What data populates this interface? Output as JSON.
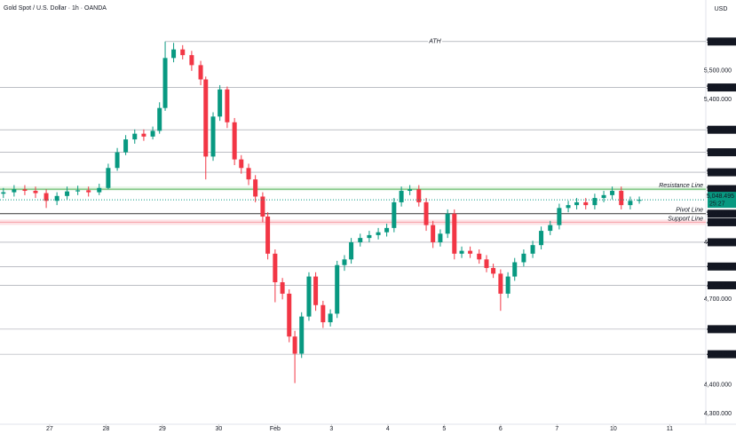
{
  "chart_data": {
    "type": "candlestick",
    "title": "Gold Spot / U.S. Dollar · 1h · OANDA",
    "currency": "USD",
    "xlim": [
      -0.88,
      11.64
    ],
    "xticks": [
      {
        "value": 0,
        "label": "27"
      },
      {
        "value": 1,
        "label": "28"
      },
      {
        "value": 2,
        "label": "29"
      },
      {
        "value": 3,
        "label": "30"
      },
      {
        "value": 4,
        "label": "Feb"
      },
      {
        "value": 5,
        "label": "3"
      },
      {
        "value": 6,
        "label": "4"
      },
      {
        "value": 7,
        "label": "5"
      },
      {
        "value": 8,
        "label": "6"
      },
      {
        "value": 9,
        "label": "7"
      },
      {
        "value": 10,
        "label": "10"
      },
      {
        "value": 11,
        "label": "11"
      }
    ],
    "ylim": [
      4263,
      5748
    ],
    "yticks": [
      {
        "value": 5500,
        "label": "5,500.000"
      },
      {
        "value": 5400,
        "label": "5,400.000"
      },
      {
        "value": 4900,
        "label": "4,900.000"
      },
      {
        "value": 4700,
        "label": "4,700.000"
      },
      {
        "value": 4400,
        "label": "4,400.000"
      },
      {
        "value": 4300,
        "label": "4,300.000"
      }
    ],
    "up_color": "#089981",
    "down_color": "#f23645",
    "x": [
      -0.82,
      -0.63,
      -0.44,
      -0.25,
      -0.06,
      0.13,
      0.31,
      0.5,
      0.69,
      0.88,
      1.04,
      1.2,
      1.35,
      1.51,
      1.67,
      1.83,
      1.95,
      2.05,
      2.2,
      2.36,
      2.52,
      2.68,
      2.77,
      2.9,
      3.02,
      3.15,
      3.28,
      3.4,
      3.53,
      3.65,
      3.78,
      3.87,
      4.0,
      4.13,
      4.25,
      4.35,
      4.47,
      4.6,
      4.72,
      4.85,
      4.98,
      5.1,
      5.23,
      5.35,
      5.51,
      5.67,
      5.83,
      5.98,
      6.11,
      6.24,
      6.39,
      6.55,
      6.68,
      6.8,
      6.93,
      7.06,
      7.18,
      7.31,
      7.46,
      7.62,
      7.75,
      7.87,
      8.0,
      8.13,
      8.25,
      8.41,
      8.57,
      8.72,
      8.88,
      9.04,
      9.2,
      9.35,
      9.51,
      9.67,
      9.83,
      9.98,
      10.14,
      10.3,
      10.46
    ],
    "open": [
      5070,
      5075,
      5085,
      5080,
      5072,
      5045,
      5062,
      5078,
      5082,
      5075,
      5090,
      5160,
      5215,
      5260,
      5280,
      5270,
      5290,
      5370,
      5545,
      5575,
      5555,
      5520,
      5470,
      5200,
      5340,
      5435,
      5320,
      5190,
      5160,
      5120,
      5060,
      4990,
      4860,
      4760,
      4720,
      4570,
      4510,
      4640,
      4780,
      4680,
      4620,
      4650,
      4820,
      4840,
      4900,
      4915,
      4925,
      4935,
      4950,
      5040,
      5080,
      5085,
      5040,
      4960,
      4900,
      4930,
      5000,
      4860,
      4870,
      4860,
      4840,
      4810,
      4790,
      4720,
      4780,
      4830,
      4860,
      4890,
      4940,
      4960,
      5020,
      5030,
      5040,
      5030,
      5055,
      5065,
      5080,
      5030,
      5045
    ],
    "high": [
      5090,
      5100,
      5100,
      5095,
      5085,
      5075,
      5095,
      5098,
      5095,
      5105,
      5175,
      5230,
      5275,
      5295,
      5295,
      5305,
      5390,
      5602.59,
      5598,
      5590,
      5570,
      5535,
      5480,
      5355,
      5450,
      5445,
      5335,
      5205,
      5175,
      5135,
      5075,
      5005,
      4875,
      4775,
      4735,
      4590,
      4655,
      4795,
      4795,
      4695,
      4665,
      4835,
      4855,
      4915,
      4930,
      4940,
      4950,
      4965,
      5055,
      5095,
      5100,
      5100,
      5055,
      4975,
      4945,
      5015,
      5015,
      4885,
      4885,
      4875,
      4855,
      4825,
      4805,
      4795,
      4845,
      4875,
      4905,
      4955,
      4975,
      5035,
      5045,
      5055,
      5055,
      5070,
      5080,
      5095,
      5095,
      5060,
      5060
    ],
    "low": [
      5055,
      5060,
      5065,
      5055,
      5020,
      5030,
      5050,
      5065,
      5060,
      5065,
      5085,
      5150,
      5205,
      5245,
      5255,
      5260,
      5280,
      5360,
      5530,
      5540,
      5500,
      5450,
      5120,
      5185,
      5325,
      5300,
      5170,
      5140,
      5100,
      5040,
      4970,
      4840,
      4690,
      4700,
      4550,
      4407,
      4495,
      4625,
      4660,
      4600,
      4605,
      4635,
      4800,
      4825,
      4885,
      4900,
      4910,
      4920,
      4935,
      5025,
      5065,
      5025,
      4940,
      4880,
      4885,
      4915,
      4840,
      4845,
      4845,
      4825,
      4795,
      4775,
      4660,
      4705,
      4765,
      4815,
      4845,
      4875,
      4925,
      4945,
      5005,
      5015,
      5015,
      5015,
      5040,
      5050,
      5015,
      5015,
      5035
    ],
    "close": [
      5075,
      5085,
      5080,
      5072,
      5045,
      5062,
      5078,
      5082,
      5075,
      5090,
      5160,
      5215,
      5260,
      5280,
      5270,
      5290,
      5370,
      5545,
      5575,
      5555,
      5520,
      5470,
      5200,
      5340,
      5435,
      5320,
      5190,
      5160,
      5120,
      5060,
      4990,
      4860,
      4760,
      4720,
      4570,
      4510,
      4640,
      4780,
      4680,
      4620,
      4650,
      4820,
      4840,
      4900,
      4915,
      4925,
      4935,
      4950,
      5040,
      5080,
      5085,
      5040,
      4960,
      4900,
      4930,
      5000,
      4860,
      4870,
      4860,
      4840,
      4810,
      4790,
      4720,
      4780,
      4830,
      4860,
      4890,
      4940,
      4960,
      5020,
      5030,
      5040,
      5030,
      5055,
      5065,
      5080,
      5030,
      5045,
      5048.495
    ],
    "levels": [
      {
        "value": 5602.59,
        "label": "5,602.590",
        "name": "ATH"
      },
      {
        "value": 5441.793,
        "label": "5,441.793"
      },
      {
        "value": 5293.785,
        "label": "5,293.785"
      },
      {
        "value": 5215,
        "label": "5,215.000"
      },
      {
        "value": 5145,
        "label": "5,145.000"
      },
      {
        "value": 5086,
        "label": "5,086.000",
        "name": "Resistance Line",
        "color": "#4caf50"
      },
      {
        "value": 5000,
        "label": "5,000.000",
        "name": "Pivot Line",
        "color": "#333333"
      },
      {
        "value": 4970,
        "label": "4,970.000",
        "name": "Support Line",
        "color": "#f7a1a8"
      },
      {
        "value": 4900,
        "label": "4,900.000"
      },
      {
        "value": 4815.046,
        "label": "4,815.046"
      },
      {
        "value": 4749.265,
        "label": "4,749.265"
      },
      {
        "value": 4595.776,
        "label": "4,595.776"
      },
      {
        "value": 4508.068,
        "label": "4,508.068"
      }
    ],
    "current_price": {
      "value": 5048.495,
      "label": "5,048.495",
      "countdown": "25:27"
    }
  }
}
